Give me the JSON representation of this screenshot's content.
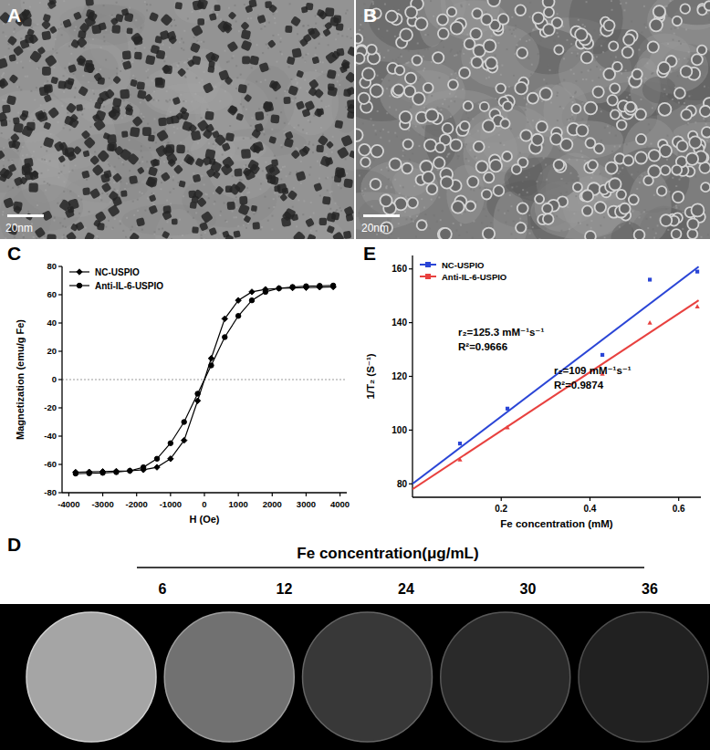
{
  "chart_data": [
    {
      "type": "image",
      "label": "A",
      "scale_bar": "20nm",
      "marker": "dot"
    },
    {
      "type": "image",
      "label": "B",
      "scale_bar": "20nm",
      "marker": "ring"
    },
    {
      "type": "line",
      "label": "C",
      "x_label": "H (Oe)",
      "y_label": "Magnetization (emu/g Fe)",
      "x": [
        -3800,
        -3400,
        -3000,
        -2600,
        -2200,
        -1800,
        -1400,
        -1000,
        -600,
        -200,
        200,
        600,
        1000,
        1400,
        1800,
        2200,
        2600,
        3000,
        3400,
        3800
      ],
      "series": [
        {
          "name": "NC-USPIO",
          "color": "#000000",
          "marker": "diamond",
          "values": [
            -65.5,
            -65.3,
            -65,
            -64.8,
            -64.5,
            -63.8,
            -62,
            -56,
            -43,
            -15,
            15,
            43,
            56,
            62,
            63.8,
            64.5,
            64.8,
            65,
            65.3,
            65.5
          ]
        },
        {
          "name": "Anti-IL-6-USPIO",
          "color": "#000000",
          "marker": "circle",
          "values": [
            -66.5,
            -66.3,
            -66,
            -65.5,
            -64.5,
            -62,
            -56,
            -45,
            -30,
            -10,
            10,
            30,
            45,
            56,
            62,
            64.5,
            65.5,
            66,
            66.3,
            66.5
          ]
        }
      ],
      "xlim": [
        -4200,
        4200
      ],
      "xticks": [
        -4000,
        -3000,
        -2000,
        -1000,
        0,
        1000,
        2000,
        3000,
        4000
      ],
      "ylim": [
        -80,
        80
      ],
      "yticks": [
        -80,
        -60,
        -40,
        -20,
        0,
        20,
        40,
        60,
        80
      ],
      "reference_line": 0,
      "legend": "upper left"
    },
    {
      "type": "phantom",
      "label": "D",
      "title": "Fe concentration(μg/mL)",
      "x": [
        6,
        12,
        24,
        30,
        36
      ]
    },
    {
      "type": "scatter",
      "label": "E",
      "x_label": "Fe concentration (mM)",
      "y_label": "1/T₂ (S⁻¹)",
      "series": [
        {
          "name": "NC-USPIO",
          "color": "#2a45d6",
          "marker": "square",
          "x": [
            0.107,
            0.214,
            0.428,
            0.535,
            0.642
          ],
          "values": [
            95,
            108,
            128,
            156,
            159
          ],
          "fit": {
            "slope": 125.3,
            "intercept": 80,
            "x": [
              0,
              0.645
            ]
          },
          "annotation": [
            "r₂=125.3 mM⁻¹s⁻¹",
            "R²=0.9666"
          ]
        },
        {
          "name": "Anti-IL-6-USPIO",
          "color": "#e8413f",
          "marker": "triangle",
          "x": [
            0.107,
            0.214,
            0.428,
            0.535,
            0.642
          ],
          "values": [
            89,
            101,
            121,
            140,
            146
          ],
          "fit": {
            "slope": 109,
            "intercept": 78,
            "x": [
              0,
              0.645
            ]
          },
          "annotation": [
            "r₂=109 mM⁻¹s⁻¹",
            "R²=0.9874"
          ]
        }
      ],
      "xlim": [
        0,
        0.65
      ],
      "xticks": [
        0.2,
        0.4,
        0.6
      ],
      "ylim": [
        75,
        165
      ],
      "yticks": [
        80,
        100,
        120,
        140,
        160
      ],
      "legend": "upper left"
    }
  ]
}
